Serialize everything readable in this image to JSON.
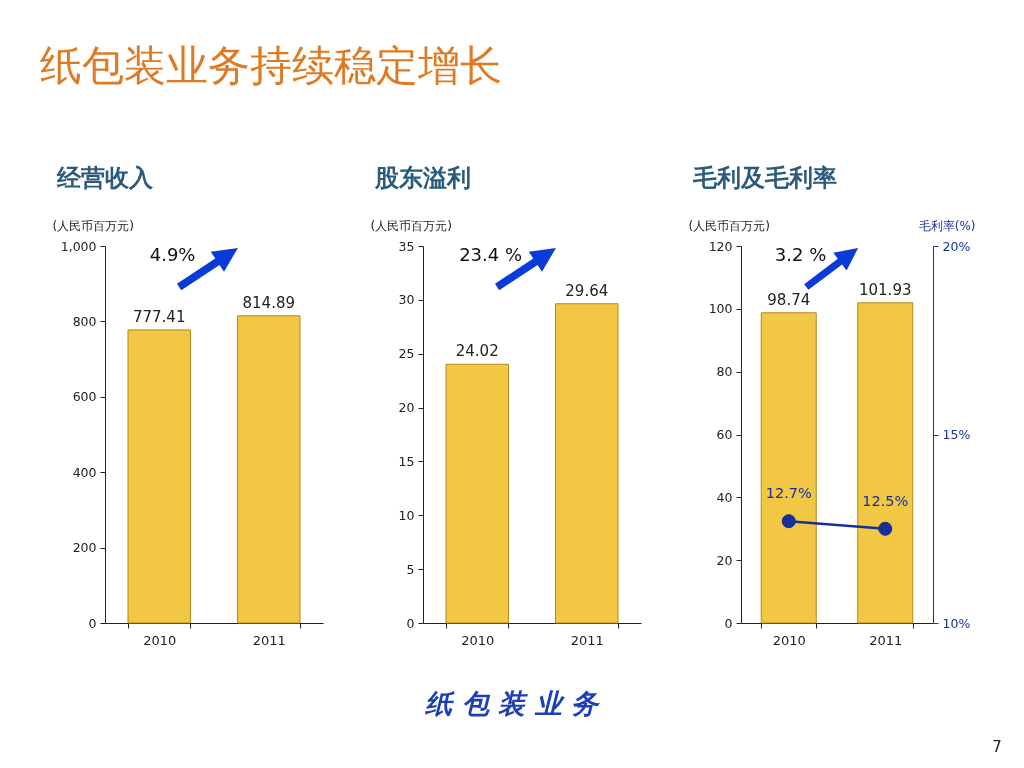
{
  "chart_data": [
    {
      "type": "other",
      "title": "纸包装业务持续稳定增长",
      "annotations": [
        "纸 包 装 业 务",
        "7"
      ]
    },
    {
      "type": "bar",
      "title": "经营收入",
      "ylabel": "(人民币百万元)",
      "categories": [
        "2010",
        "2011"
      ],
      "values": [
        777.41,
        814.89
      ],
      "color": "#f2c744",
      "ylim": [
        0,
        1000
      ],
      "yticks": [
        0,
        200,
        400,
        600,
        800,
        {
          "value": 1000,
          "label": "1,000"
        }
      ],
      "data_labels": true,
      "annotations": [
        "4.9%"
      ]
    },
    {
      "type": "bar",
      "title": "股东溢利",
      "ylabel": "(人民币百万元)",
      "categories": [
        "2010",
        "2011"
      ],
      "values": [
        24.02,
        29.64
      ],
      "color": "#f2c744",
      "ylim": [
        0,
        35
      ],
      "yticks": [
        0,
        5,
        10,
        15,
        20,
        25,
        30,
        35
      ],
      "data_labels": true,
      "annotations": [
        "23.4 %"
      ]
    },
    {
      "type": "bar",
      "title": "毛利及毛利率",
      "ylabel": "(人民币百万元)",
      "y2label": "毛利率(%)",
      "categories": [
        "2010",
        "2011"
      ],
      "series": [
        {
          "type": "bar",
          "color": "#f2c744",
          "values": [
            98.74,
            101.93
          ],
          "value_labels": [
            "98.74",
            "101.93"
          ]
        },
        {
          "type": "line",
          "axis": "y2",
          "color": "#17309e",
          "marker": "circle",
          "line_style": "solid",
          "values": [
            12.7,
            12.5
          ],
          "value_labels": [
            "12.7%",
            "12.5%"
          ]
        }
      ],
      "ylim": [
        0,
        120
      ],
      "yticks": [
        0,
        20,
        40,
        60,
        80,
        100,
        120
      ],
      "y2lim": [
        10,
        20
      ],
      "y2ticks": [
        {
          "value": 10,
          "label": "10%"
        },
        {
          "value": 15,
          "label": "15%"
        },
        {
          "value": 20,
          "label": "20%"
        }
      ],
      "annotations": [
        "3.2 %"
      ]
    }
  ]
}
